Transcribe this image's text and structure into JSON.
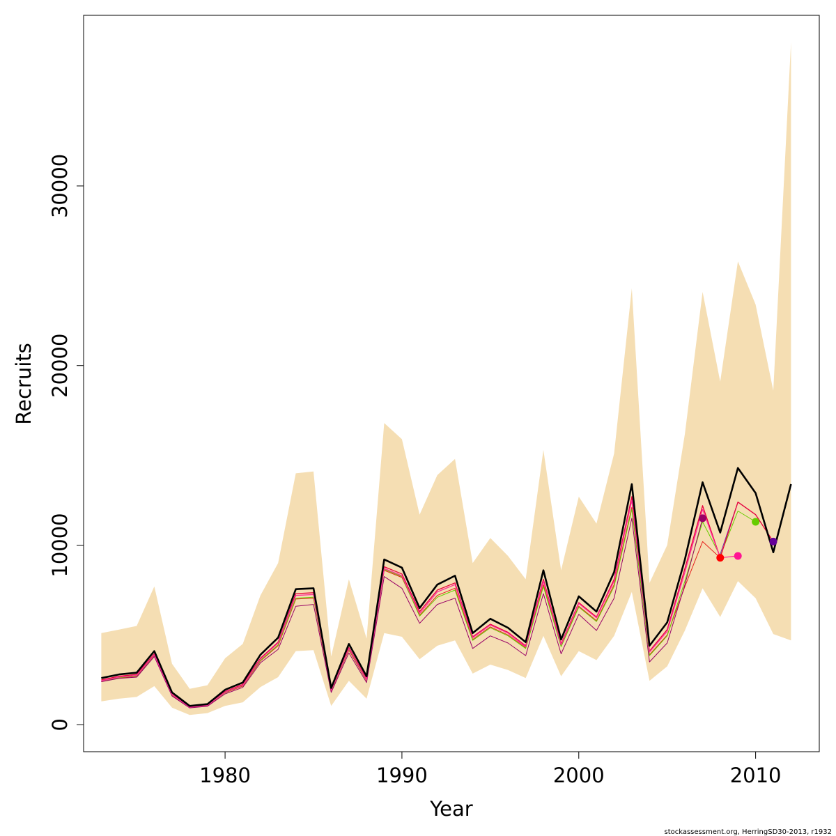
{
  "chart_data": {
    "type": "line",
    "xlabel": "Year",
    "ylabel": "Recruits",
    "xlim": [
      1972,
      2013.6
    ],
    "ylim": [
      -1500,
      39500
    ],
    "xticks": [
      1980,
      1990,
      2000,
      2010
    ],
    "yticks": [
      0,
      10000,
      20000,
      30000
    ],
    "grid": false,
    "band_color": "#f5deb3",
    "band": {
      "x": [
        1973,
        1974,
        1975,
        1976,
        1977,
        1978,
        1979,
        1980,
        1981,
        1982,
        1983,
        1984,
        1985,
        1986,
        1987,
        1988,
        1989,
        1990,
        1991,
        1992,
        1993,
        1994,
        1995,
        1996,
        1997,
        1998,
        1999,
        2000,
        2001,
        2002,
        2003,
        2004,
        2005,
        2006,
        2007,
        2008,
        2009,
        2010,
        2011,
        2012
      ],
      "upper": [
        5100,
        5300,
        5500,
        7700,
        3400,
        2000,
        2200,
        3700,
        4500,
        7200,
        9000,
        14000,
        14100,
        3800,
        8100,
        4800,
        16800,
        15900,
        11700,
        13900,
        14800,
        9000,
        10400,
        9400,
        8100,
        15300,
        8600,
        12700,
        11200,
        15100,
        24300,
        7900,
        10000,
        16200,
        24100,
        19100,
        25800,
        23400,
        18600,
        38000
      ],
      "lower": [
        1300,
        1450,
        1550,
        2150,
        950,
        550,
        650,
        1050,
        1250,
        2100,
        2650,
        4100,
        4150,
        1050,
        2450,
        1450,
        5100,
        4900,
        3650,
        4400,
        4700,
        2850,
        3350,
        3050,
        2600,
        4950,
        2700,
        4100,
        3600,
        4950,
        7400,
        2450,
        3250,
        5250,
        7600,
        6000,
        8000,
        7050,
        5050,
        4700
      ]
    },
    "series": [
      {
        "color": "#000000",
        "width": 2.6,
        "x": [
          1973,
          1974,
          1975,
          1976,
          1977,
          1978,
          1979,
          1980,
          1981,
          1982,
          1983,
          1984,
          1985,
          1986,
          1987,
          1988,
          1989,
          1990,
          1991,
          1992,
          1993,
          1994,
          1995,
          1996,
          1997,
          1998,
          1999,
          2000,
          2001,
          2002,
          2003,
          2004,
          2005,
          2006,
          2007,
          2008,
          2009,
          2010,
          2011,
          2012
        ],
        "values": [
          2600,
          2800,
          2900,
          4100,
          1800,
          1050,
          1150,
          1950,
          2350,
          3900,
          4850,
          7550,
          7600,
          2050,
          4500,
          2700,
          9200,
          8750,
          6500,
          7800,
          8300,
          5100,
          5900,
          5400,
          4600,
          8600,
          4750,
          7150,
          6300,
          8500,
          13400,
          4400,
          5700,
          9200,
          13500,
          10700,
          14300,
          12900,
          9600,
          13400
        ]
      },
      {
        "color": "#e8003c",
        "width": 1.3,
        "x": [
          1973,
          1974,
          1975,
          1976,
          1977,
          1978,
          1979,
          1980,
          1981,
          1982,
          1983,
          1984,
          1985,
          1986,
          1987,
          1988,
          1989,
          1990,
          1991,
          1992,
          1993,
          1994,
          1995,
          1996,
          1997,
          1998,
          1999,
          2000,
          2001,
          2002,
          2003,
          2004,
          2005,
          2006,
          2007,
          2008,
          2009,
          2010,
          2011
        ],
        "values": [
          2500,
          2700,
          2800,
          3950,
          1700,
          1000,
          1100,
          1850,
          2250,
          3700,
          4600,
          7300,
          7350,
          1950,
          4300,
          2550,
          8800,
          8400,
          6300,
          7500,
          7900,
          4900,
          5600,
          5150,
          4400,
          8100,
          4500,
          6800,
          6000,
          8100,
          12700,
          4100,
          5300,
          8700,
          12200,
          9300,
          12400,
          11700,
          10200
        ]
      },
      {
        "color": "#ff2a9a",
        "width": 1.3,
        "x": [
          1973,
          1974,
          1975,
          1976,
          1977,
          1978,
          1979,
          1980,
          1981,
          1982,
          1983,
          1984,
          1985,
          1986,
          1987,
          1988,
          1989,
          1990,
          1991,
          1992,
          1993,
          1994,
          1995,
          1996,
          1997,
          1998,
          1999,
          2000,
          2001,
          2002,
          2003,
          2004,
          2005,
          2006,
          2007,
          2008,
          2009
        ],
        "values": [
          2450,
          2650,
          2750,
          3900,
          1680,
          980,
          1080,
          1820,
          2200,
          3650,
          4550,
          7200,
          7250,
          1920,
          4250,
          2500,
          8700,
          8300,
          6200,
          7400,
          7800,
          4850,
          5550,
          5100,
          4350,
          8000,
          4450,
          6750,
          5950,
          8000,
          12500,
          4050,
          5200,
          8500,
          12000,
          9300,
          9400
        ]
      },
      {
        "color": "#e5201c",
        "width": 1.0,
        "x": [
          1973,
          1974,
          1975,
          1976,
          1977,
          1978,
          1979,
          1980,
          1981,
          1982,
          1983,
          1984,
          1985,
          1986,
          1987,
          1988,
          1989,
          1990,
          1991,
          1992,
          1993,
          1994,
          1995,
          1996,
          1997,
          1998,
          1999,
          2000,
          2001,
          2002,
          2003,
          2004,
          2005,
          2006,
          2007,
          2008
        ],
        "values": [
          2400,
          2600,
          2700,
          3850,
          1650,
          960,
          1060,
          1780,
          2150,
          3550,
          4400,
          7000,
          7050,
          1880,
          4150,
          2450,
          8600,
          8200,
          6100,
          7200,
          7600,
          4750,
          5450,
          5000,
          4300,
          7800,
          4400,
          6600,
          5800,
          7800,
          12100,
          3900,
          5000,
          7700,
          10200,
          9300
        ]
      },
      {
        "color": "#66cc00",
        "width": 1.0,
        "x": [
          1973,
          1974,
          1975,
          1976,
          1977,
          1978,
          1979,
          1980,
          1981,
          1982,
          1983,
          1984,
          1985,
          1986,
          1987,
          1988,
          1989,
          1990,
          1991,
          1992,
          1993,
          1994,
          1995,
          1996,
          1997,
          1998,
          1999,
          2000,
          2001,
          2002,
          2003,
          2004,
          2005,
          2006,
          2007,
          2008,
          2009,
          2010
        ],
        "values": [
          2420,
          2620,
          2720,
          3870,
          1660,
          970,
          1070,
          1800,
          2180,
          3580,
          4450,
          7050,
          7100,
          1900,
          4200,
          2470,
          8650,
          8250,
          6050,
          7100,
          7500,
          4700,
          5400,
          4950,
          4250,
          7700,
          4350,
          6550,
          5750,
          7700,
          12000,
          3850,
          4950,
          8000,
          11300,
          9400,
          11900,
          11300
        ]
      },
      {
        "color": "#990066",
        "width": 1.0,
        "x": [
          1973,
          1974,
          1975,
          1976,
          1977,
          1978,
          1979,
          1980,
          1981,
          1982,
          1983,
          1984,
          1985,
          1986,
          1987,
          1988,
          1989,
          1990,
          1991,
          1992,
          1993,
          1994,
          1995,
          1996,
          1997,
          1998,
          1999,
          2000,
          2001,
          2002,
          2003,
          2004,
          2005,
          2006,
          2007
        ],
        "values": [
          2400,
          2580,
          2650,
          3800,
          1600,
          940,
          1030,
          1720,
          2080,
          3450,
          4200,
          6600,
          6700,
          1800,
          4000,
          2350,
          8250,
          7600,
          5650,
          6700,
          7050,
          4250,
          4950,
          4550,
          3850,
          7300,
          3950,
          6150,
          5250,
          7050,
          11500,
          3500,
          4550,
          7800,
          11500
        ]
      },
      {
        "color": "#7b2fa8",
        "width": 1.0,
        "x": [
          2008,
          2009,
          2010,
          2011
        ],
        "values": [
          9500,
          12400,
          11700,
          10200
        ]
      }
    ],
    "markers": [
      {
        "x": 2007,
        "y": 11500,
        "color": "#990066"
      },
      {
        "x": 2008,
        "y": 9300,
        "color": "#ff0000"
      },
      {
        "x": 2009,
        "y": 9400,
        "color": "#ff1493"
      },
      {
        "x": 2010,
        "y": 11300,
        "color": "#66cc00"
      },
      {
        "x": 2011,
        "y": 10200,
        "color": "#660099"
      }
    ],
    "footnote": "stockassessment.org, HerringSD30-2013, r1932"
  }
}
